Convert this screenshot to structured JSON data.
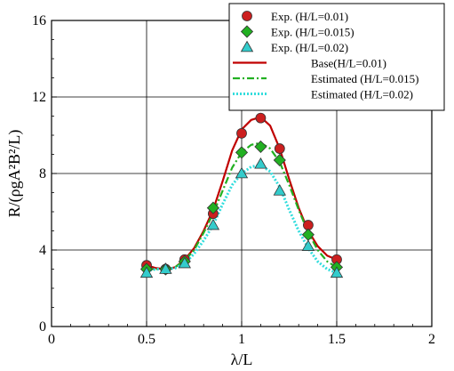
{
  "chart_data": {
    "type": "scatter",
    "xlabel": "λ/L",
    "ylabel": "R/(ρgA²B²/L)",
    "xlim": [
      0,
      2
    ],
    "ylim": [
      0,
      16
    ],
    "x_ticks": [
      0,
      0.5,
      1,
      1.5,
      2
    ],
    "x_tick_labels": [
      "0",
      "0.5",
      "1",
      "1.5",
      "2"
    ],
    "y_ticks": [
      0,
      4,
      8,
      12,
      16
    ],
    "y_tick_labels": [
      "0",
      "4",
      "8",
      "12",
      "16"
    ],
    "grid": true,
    "legend_position": "top-right",
    "scatter_series": [
      {
        "name": "Exp. (H/L=0.01)",
        "marker": "circle",
        "color": "#cc1f1f",
        "points": [
          [
            0.5,
            3.2
          ],
          [
            0.6,
            3.0
          ],
          [
            0.7,
            3.5
          ],
          [
            0.85,
            5.9
          ],
          [
            1.0,
            10.1
          ],
          [
            1.1,
            10.9
          ],
          [
            1.2,
            9.3
          ],
          [
            1.35,
            5.3
          ],
          [
            1.5,
            3.5
          ]
        ]
      },
      {
        "name": "Exp. (H/L=0.015)",
        "marker": "diamond",
        "color": "#22b022",
        "points": [
          [
            0.5,
            3.0
          ],
          [
            0.6,
            3.0
          ],
          [
            0.7,
            3.4
          ],
          [
            0.85,
            6.2
          ],
          [
            1.0,
            9.1
          ],
          [
            1.1,
            9.4
          ],
          [
            1.2,
            8.7
          ],
          [
            1.35,
            4.8
          ],
          [
            1.5,
            3.1
          ]
        ]
      },
      {
        "name": "Exp. (H/L=0.02)",
        "marker": "triangle",
        "color": "#33cccc",
        "points": [
          [
            0.5,
            2.8
          ],
          [
            0.6,
            3.0
          ],
          [
            0.7,
            3.3
          ],
          [
            0.85,
            5.3
          ],
          [
            1.0,
            8.0
          ],
          [
            1.1,
            8.5
          ],
          [
            1.2,
            7.1
          ],
          [
            1.35,
            4.2
          ],
          [
            1.5,
            2.8
          ]
        ]
      }
    ],
    "line_series": [
      {
        "name": "Base(H/L=0.01)",
        "style": "solid",
        "color": "#c00000",
        "x": [
          0.5,
          0.55,
          0.6,
          0.65,
          0.7,
          0.75,
          0.8,
          0.85,
          0.9,
          0.95,
          1.0,
          1.05,
          1.1,
          1.15,
          1.2,
          1.25,
          1.3,
          1.35,
          1.4,
          1.45,
          1.5
        ],
        "y": [
          3.2,
          3.05,
          3.0,
          3.1,
          3.5,
          4.1,
          5.0,
          6.1,
          7.6,
          9.2,
          10.3,
          10.8,
          10.95,
          10.5,
          9.3,
          7.7,
          6.2,
          5.0,
          4.2,
          3.7,
          3.5
        ]
      },
      {
        "name": "Estimated (H/L=0.015)",
        "style": "dash-dot",
        "color": "#22b022",
        "x": [
          0.5,
          0.55,
          0.6,
          0.65,
          0.7,
          0.75,
          0.8,
          0.85,
          0.9,
          0.95,
          1.0,
          1.05,
          1.1,
          1.15,
          1.2,
          1.25,
          1.3,
          1.35,
          1.4,
          1.45,
          1.5
        ],
        "y": [
          3.0,
          3.0,
          3.0,
          3.1,
          3.45,
          4.0,
          4.9,
          5.9,
          7.1,
          8.3,
          9.1,
          9.5,
          9.6,
          9.3,
          8.6,
          7.4,
          6.1,
          4.9,
          4.0,
          3.4,
          3.1
        ]
      },
      {
        "name": "Estimated (H/L=0.02)",
        "style": "dotted",
        "color": "#33dddd",
        "x": [
          0.5,
          0.55,
          0.6,
          0.65,
          0.7,
          0.75,
          0.8,
          0.85,
          0.9,
          0.95,
          1.0,
          1.05,
          1.1,
          1.15,
          1.2,
          1.25,
          1.3,
          1.35,
          1.4,
          1.45,
          1.5
        ],
        "y": [
          2.9,
          3.0,
          3.0,
          3.05,
          3.3,
          3.8,
          4.5,
          5.3,
          6.4,
          7.4,
          8.0,
          8.35,
          8.45,
          8.1,
          7.3,
          6.1,
          5.0,
          4.1,
          3.4,
          3.0,
          2.8
        ]
      }
    ]
  }
}
